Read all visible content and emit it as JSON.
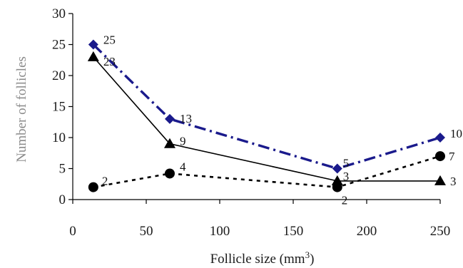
{
  "chart_data": {
    "type": "line",
    "title": "",
    "xlabel": "Follicle size (mm",
    "xlabel_sup": "3",
    "xlabel_close": ")",
    "ylabel": "Number of follicles",
    "xlim": [
      0,
      250
    ],
    "ylim": [
      0,
      30
    ],
    "xticks": [
      0,
      50,
      100,
      150,
      200,
      250
    ],
    "yticks": [
      0,
      5,
      10,
      15,
      20,
      25,
      30
    ],
    "grid": false,
    "legend": "none",
    "series": [
      {
        "marker": "diamond",
        "line_style": "dash-dot",
        "color": "#1a1a8c",
        "x": [
          14,
          66,
          180,
          250
        ],
        "y": [
          25,
          13,
          5,
          10
        ],
        "labels": [
          "25",
          "13",
          "5",
          "10"
        ]
      },
      {
        "marker": "triangle",
        "line_style": "solid",
        "color": "#000000",
        "x": [
          14,
          66,
          180,
          250
        ],
        "y": [
          23,
          9,
          3,
          3
        ],
        "labels": [
          "23",
          "9",
          "3",
          "3"
        ]
      },
      {
        "marker": "circle",
        "line_style": "dotted",
        "color": "#000000",
        "x": [
          14,
          66,
          180,
          250
        ],
        "y": [
          2,
          4.2,
          2,
          7
        ],
        "labels": [
          "2",
          "4",
          "2",
          "7"
        ]
      }
    ]
  }
}
